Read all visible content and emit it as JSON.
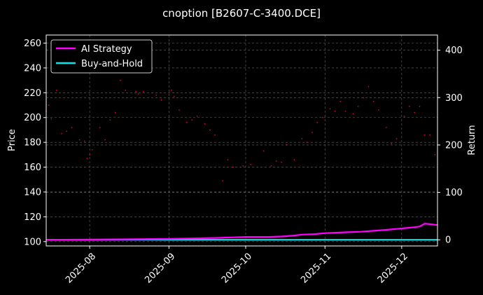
{
  "chart_data": {
    "type": "line",
    "title": "cnoption [B2607-C-3400.DCE]",
    "x_axis": {
      "range": [
        "2025-07-15",
        "2025-12-15"
      ],
      "tick_labels": [
        "2025-08",
        "2025-09",
        "2025-10",
        "2025-11",
        "2025-12"
      ],
      "tick_dates": [
        "2025-08-01",
        "2025-09-01",
        "2025-10-01",
        "2025-11-01",
        "2025-12-01"
      ]
    },
    "y_left": {
      "label": "Price",
      "range": [
        96.5,
        266.5
      ],
      "ticks": [
        100,
        120,
        140,
        160,
        180,
        200,
        220,
        240,
        260
      ]
    },
    "y_right": {
      "label": "Return",
      "range": [
        -13,
        432
      ],
      "ticks": [
        0,
        100,
        200,
        300,
        400
      ]
    },
    "grid": true,
    "legend_placement": "top-left",
    "price_points": {
      "name": "",
      "axis": "left",
      "color": "#ff0040",
      "x": [
        "2025-07-15",
        "2025-07-16",
        "2025-07-17",
        "2025-07-19",
        "2025-07-21",
        "2025-07-23",
        "2025-07-25",
        "2025-07-28",
        "2025-07-30",
        "2025-07-31",
        "2025-08-01",
        "2025-08-02",
        "2025-08-05",
        "2025-08-07",
        "2025-08-09",
        "2025-08-11",
        "2025-08-13",
        "2025-08-15",
        "2025-08-19",
        "2025-08-20",
        "2025-08-22",
        "2025-08-27",
        "2025-08-29",
        "2025-09-02",
        "2025-09-03",
        "2025-09-05",
        "2025-09-08",
        "2025-09-10",
        "2025-09-12",
        "2025-09-15",
        "2025-09-17",
        "2025-09-19",
        "2025-09-22",
        "2025-09-24",
        "2025-09-26",
        "2025-09-30",
        "2025-10-03",
        "2025-10-08",
        "2025-10-11",
        "2025-10-13",
        "2025-10-15",
        "2025-10-17",
        "2025-10-20",
        "2025-10-23",
        "2025-10-25",
        "2025-10-27",
        "2025-10-29",
        "2025-10-31",
        "2025-11-03",
        "2025-11-05",
        "2025-11-07",
        "2025-11-09",
        "2025-11-12",
        "2025-11-14",
        "2025-11-16",
        "2025-11-18",
        "2025-11-20",
        "2025-11-22",
        "2025-11-25",
        "2025-11-27",
        "2025-11-29",
        "2025-12-02",
        "2025-12-04",
        "2025-12-06",
        "2025-12-08",
        "2025-12-10",
        "2025-12-12",
        "2025-12-14"
      ],
      "y": [
        205,
        210,
        199,
        222,
        187,
        189,
        192,
        182,
        181,
        167,
        170,
        174,
        192,
        182,
        198,
        204,
        230,
        222,
        221,
        219,
        221,
        218,
        214,
        222,
        217,
        206,
        196,
        198,
        201,
        195,
        190,
        186,
        149,
        166,
        160,
        161,
        162,
        173,
        161,
        165,
        164,
        178,
        166,
        183,
        180,
        188,
        196,
        200,
        207,
        205,
        213,
        205,
        203,
        209,
        216,
        225,
        213,
        206,
        192,
        179,
        183,
        201,
        209,
        204,
        209,
        186,
        186,
        170
      ]
    },
    "series": [
      {
        "name": "AI Strategy",
        "axis": "right",
        "color": "#ff00ff",
        "x": [
          "2025-07-15",
          "2025-08-01",
          "2025-08-15",
          "2025-09-01",
          "2025-09-10",
          "2025-09-20",
          "2025-09-25",
          "2025-10-01",
          "2025-10-10",
          "2025-10-15",
          "2025-10-20",
          "2025-10-23",
          "2025-10-28",
          "2025-11-01",
          "2025-11-05",
          "2025-11-10",
          "2025-11-15",
          "2025-11-20",
          "2025-11-25",
          "2025-12-01",
          "2025-12-05",
          "2025-12-08",
          "2025-12-10",
          "2025-12-12",
          "2025-12-15"
        ],
        "y": [
          0,
          0.5,
          1,
          2,
          3,
          4,
          5,
          6,
          6,
          7,
          9,
          11,
          12,
          14,
          15,
          16,
          17,
          19,
          21,
          24,
          26,
          28,
          34,
          33,
          31
        ]
      },
      {
        "name": "Buy-and-Hold",
        "axis": "right",
        "color": "#00e5ee",
        "x": [
          "2025-07-15",
          "2025-12-15"
        ],
        "y": [
          0,
          0
        ]
      }
    ]
  }
}
